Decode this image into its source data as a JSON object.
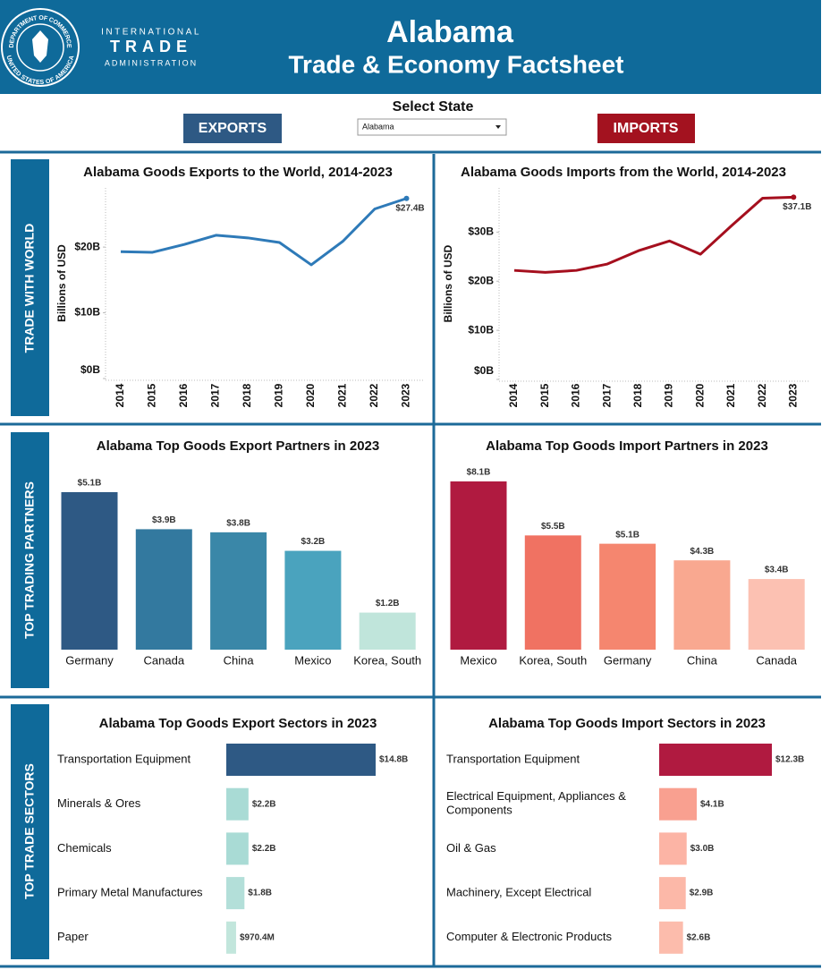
{
  "header": {
    "seal_top": "DEPARTMENT OF COMMERCE",
    "seal_bottom": "UNITED STATES OF AMERICA",
    "agency": [
      "INTERNATIONAL",
      "TRADE",
      "ADMINISTRATION"
    ],
    "title": "Alabama",
    "subtitle": "Trade & Economy Factsheet"
  },
  "controls": {
    "exports_button": "EXPORTS",
    "select_label": "Select State",
    "selected_state": "Alabama",
    "imports_button": "IMPORTS"
  },
  "sections": [
    "TRADE WITH WORLD",
    "TOP TRADING PARTNERS",
    "TOP TRADE SECTORS"
  ],
  "chart_data": [
    {
      "type": "line",
      "title": "Alabama Goods Exports to the World, 2014-2023",
      "y_label": "Billions of USD",
      "categories": [
        "2014",
        "2015",
        "2016",
        "2017",
        "2018",
        "2019",
        "2020",
        "2021",
        "2022",
        "2023"
      ],
      "color": "#2e7ab8",
      "values": [
        19.3,
        19.2,
        20.4,
        21.8,
        21.4,
        20.7,
        17.3,
        20.9,
        25.8,
        27.4
      ],
      "value_labels": [
        null,
        null,
        null,
        null,
        null,
        null,
        null,
        null,
        null,
        "$27.4B"
      ],
      "ylim": [
        0,
        29
      ],
      "yticks": [
        {
          "value": 0,
          "label": "$0B"
        },
        {
          "value": 10,
          "label": "$10B"
        },
        {
          "value": 20,
          "label": "$20B"
        }
      ]
    },
    {
      "type": "line",
      "title": "Alabama Goods Imports from the World, 2014-2023",
      "y_label": "Billions of USD",
      "categories": [
        "2014",
        "2015",
        "2016",
        "2017",
        "2018",
        "2019",
        "2020",
        "2021",
        "2022",
        "2023"
      ],
      "color": "#a50f1e",
      "values": [
        22.2,
        21.8,
        22.2,
        23.5,
        26.2,
        28.2,
        25.5,
        31.3,
        36.9,
        37.1
      ],
      "value_labels": [
        null,
        null,
        null,
        null,
        null,
        null,
        null,
        null,
        null,
        "$37.1B"
      ],
      "ylim": [
        0,
        39
      ],
      "yticks": [
        {
          "value": 0,
          "label": "$0B"
        },
        {
          "value": 10,
          "label": "$10B"
        },
        {
          "value": 20,
          "label": "$20B"
        },
        {
          "value": 30,
          "label": "$30B"
        }
      ]
    },
    {
      "type": "bar",
      "title": "Alabama Top Goods Export Partners in 2023",
      "categories": [
        "Germany",
        "Canada",
        "China",
        "Mexico",
        "Korea, South"
      ],
      "values": [
        5.1,
        3.9,
        3.8,
        3.2,
        1.2
      ],
      "value_labels": [
        "$5.1B",
        "$3.9B",
        "$3.8B",
        "$3.2B",
        "$1.2B"
      ],
      "colors": [
        "#2e5984",
        "#33799f",
        "#3a87a8",
        "#4aa3be",
        "#c0e5db"
      ]
    },
    {
      "type": "bar",
      "title": "Alabama Top Goods Import Partners in 2023",
      "categories": [
        "Mexico",
        "Korea, South",
        "Germany",
        "China",
        "Canada"
      ],
      "values": [
        8.1,
        5.5,
        5.1,
        4.3,
        3.4
      ],
      "value_labels": [
        "$8.1B",
        "$5.5B",
        "$5.1B",
        "$4.3B",
        "$3.4B"
      ],
      "colors": [
        "#b01a40",
        "#f07262",
        "#f5866f",
        "#f9a890",
        "#fcc1b2"
      ]
    },
    {
      "type": "barh",
      "title": "Alabama Top Goods Export Sectors in 2023",
      "categories": [
        "Transportation Equipment",
        "Minerals & Ores",
        "Chemicals",
        "Primary Metal Manufactures",
        "Paper"
      ],
      "values": [
        14.8,
        2.2,
        2.2,
        1.8,
        0.9704
      ],
      "value_labels": [
        "$14.8B",
        "$2.2B",
        "$2.2B",
        "$1.8B",
        "$970.4M"
      ],
      "colors": [
        "#2e5984",
        "#a9dbd5",
        "#a9dbd5",
        "#b3dfd9",
        "#c2e6dc"
      ]
    },
    {
      "type": "barh",
      "title": "Alabama Top Goods Import Sectors in 2023",
      "categories": [
        "Transportation Equipment",
        "Electrical Equipment, Appliances & Components",
        "Oil & Gas",
        "Machinery, Except Electrical",
        "Computer & Electronic Products"
      ],
      "values": [
        12.3,
        4.1,
        3.0,
        2.9,
        2.6
      ],
      "value_labels": [
        "$12.3B",
        "$4.1B",
        "$3.0B",
        "$2.9B",
        "$2.6B"
      ],
      "colors": [
        "#b01a40",
        "#f9a090",
        "#fcb4a5",
        "#fcb8a8",
        "#fcbcac"
      ]
    }
  ]
}
